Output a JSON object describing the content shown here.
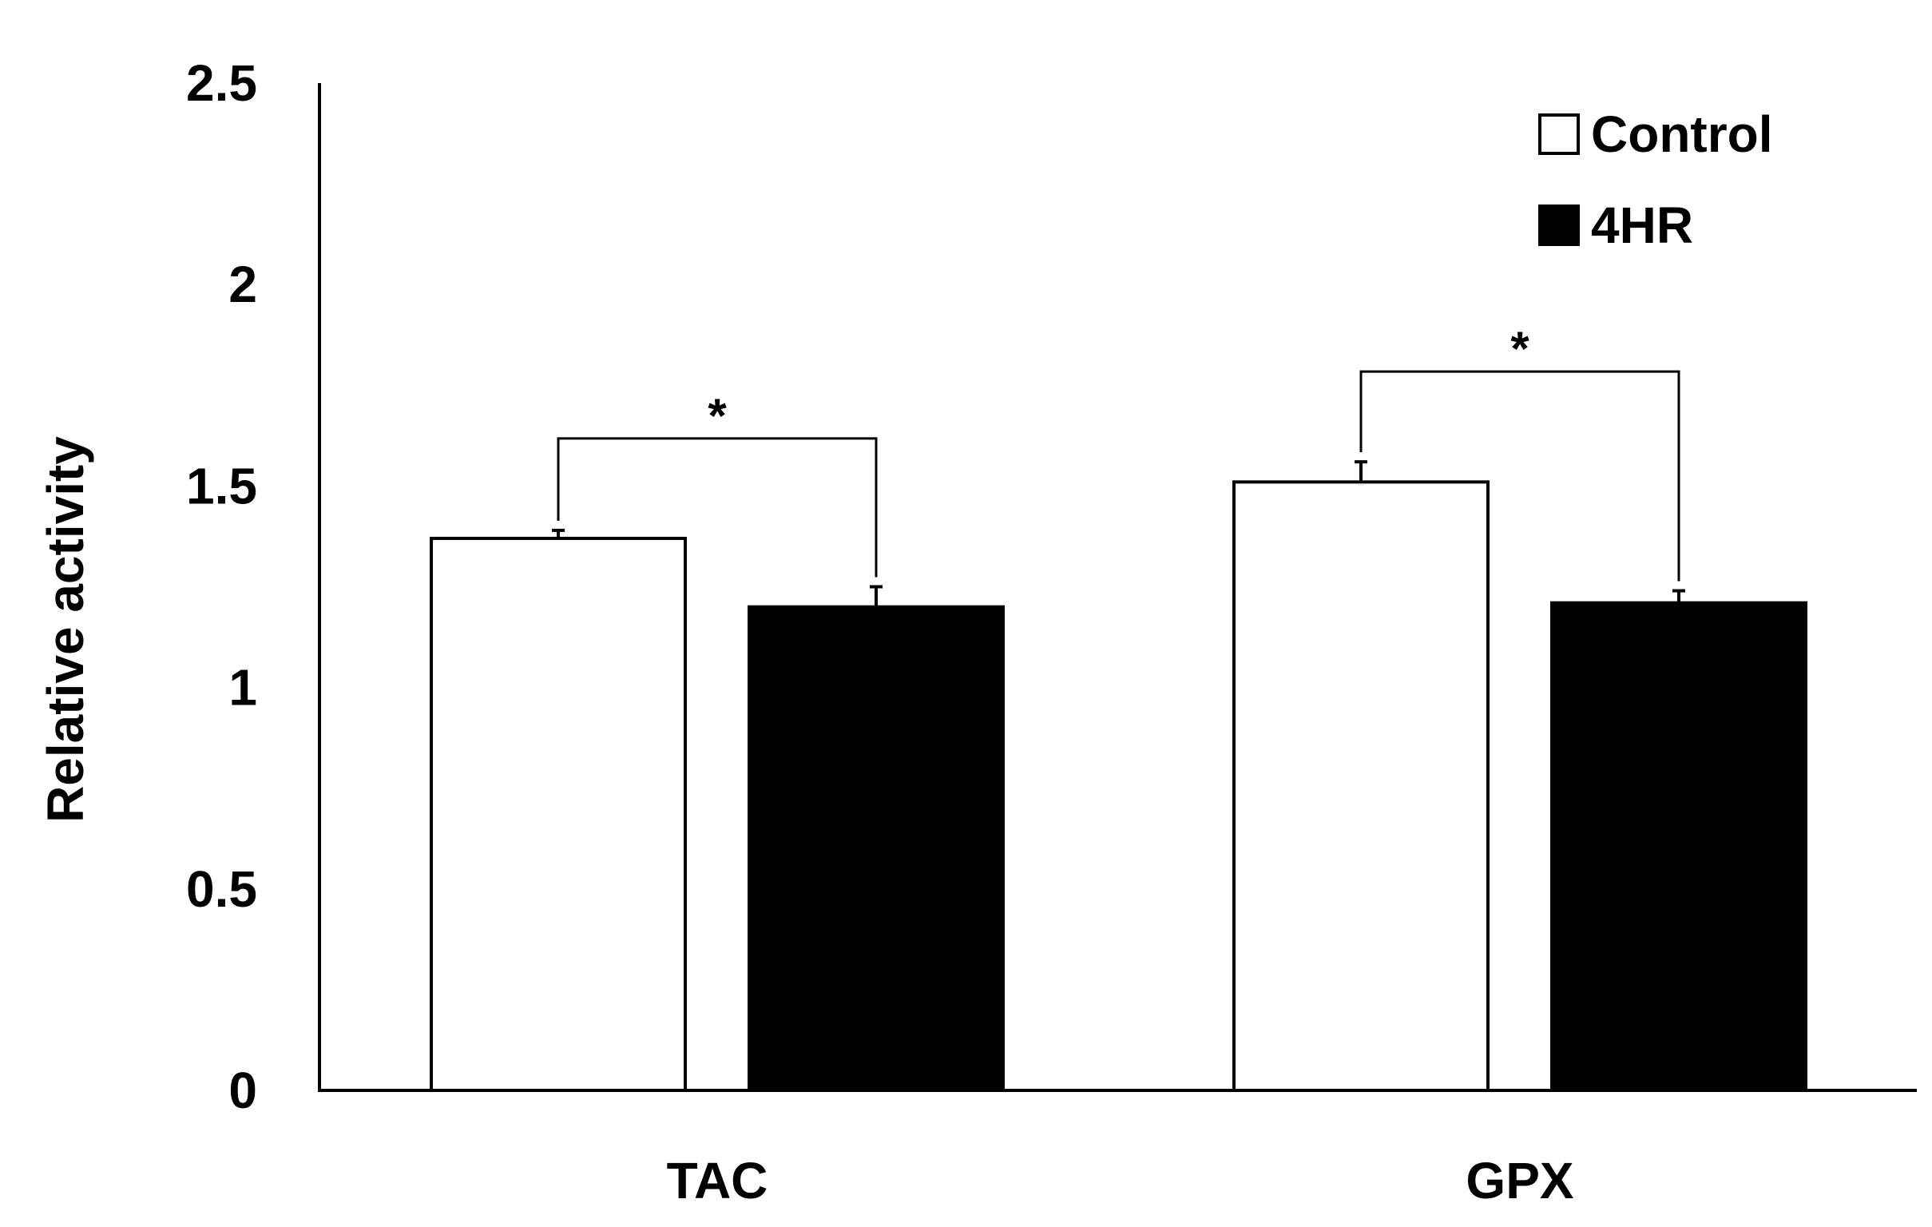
{
  "chart_data": {
    "type": "bar",
    "title": "",
    "xlabel": "",
    "ylabel": "Relative activity",
    "ylim": [
      0,
      2.5
    ],
    "yticks": [
      {
        "value": 0,
        "label": "0"
      },
      {
        "value": 0.5,
        "label": "0.5"
      },
      {
        "value": 1,
        "label": "1"
      },
      {
        "value": 1.5,
        "label": "1.5"
      },
      {
        "value": 2,
        "label": "2"
      },
      {
        "value": 2.5,
        "label": "2.5"
      }
    ],
    "categories": [
      "TAC",
      "GPX"
    ],
    "series": [
      {
        "name": "Control",
        "values": [
          1.37,
          1.51
        ],
        "errors": [
          0.02,
          0.05
        ],
        "color": "#ffffff"
      },
      {
        "name": "4HR",
        "values": [
          1.2,
          1.21
        ],
        "errors": [
          0.05,
          0.03
        ],
        "color": "#000000"
      }
    ],
    "grid": false,
    "legend_position": "top-right",
    "significance": [
      {
        "category": "TAC",
        "label": "*"
      },
      {
        "category": "GPX",
        "label": "*"
      }
    ]
  }
}
